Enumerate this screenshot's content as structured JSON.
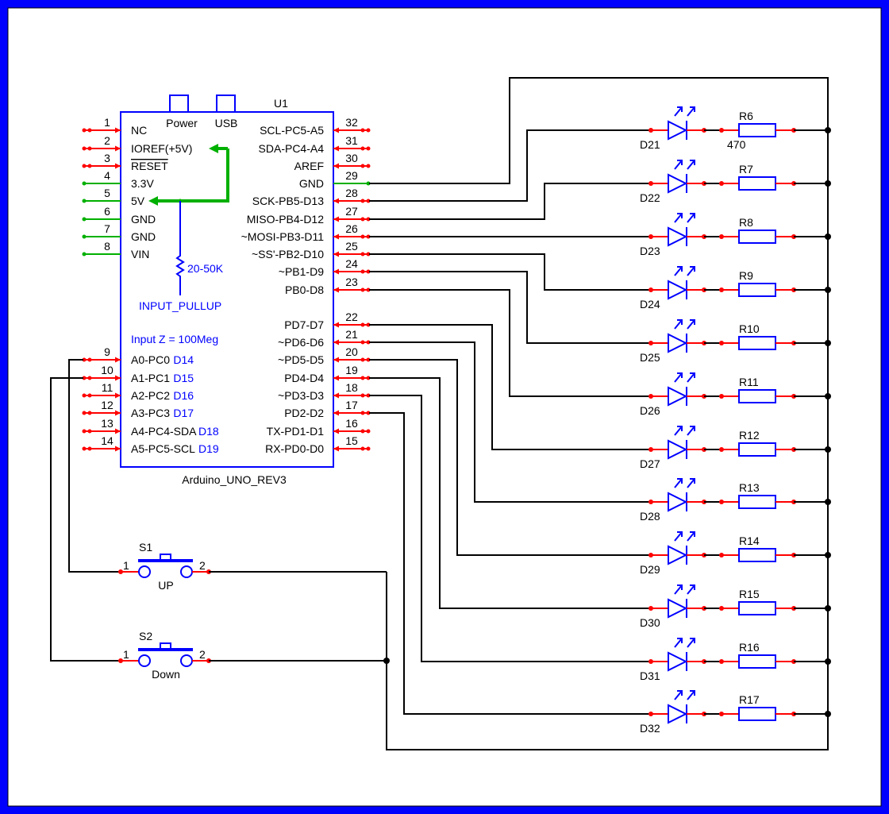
{
  "colors": {
    "frame": "#0000ff",
    "wire": "#000000",
    "pin": "#ff0000",
    "power_pin": "#00b000",
    "component": "#0000ff"
  },
  "arduino": {
    "ref": "U1",
    "name": "Arduino_UNO_REV3",
    "power_label": "Power",
    "usb_label": "USB",
    "pullup_value": "20-50K",
    "pullup_label": "INPUT_PULLUP",
    "input_z": "Input Z = 100Meg",
    "left_pins": [
      {
        "num": "1",
        "label": "NC",
        "type": "io"
      },
      {
        "num": "2",
        "label": "IOREF(+5V)",
        "type": "io"
      },
      {
        "num": "3",
        "label": "RESET",
        "type": "io",
        "overline": true
      },
      {
        "num": "4",
        "label": "3.3V",
        "type": "power"
      },
      {
        "num": "5",
        "label": "5V",
        "type": "power"
      },
      {
        "num": "6",
        "label": "GND",
        "type": "power"
      },
      {
        "num": "7",
        "label": "GND",
        "type": "power"
      },
      {
        "num": "8",
        "label": "VIN",
        "type": "power"
      },
      {
        "num": "9",
        "label": "A0-PC0",
        "alias": "D14",
        "type": "io"
      },
      {
        "num": "10",
        "label": "A1-PC1",
        "alias": "D15",
        "type": "io"
      },
      {
        "num": "11",
        "label": "A2-PC2",
        "alias": "D16",
        "type": "io"
      },
      {
        "num": "12",
        "label": "A3-PC3",
        "alias": "D17",
        "type": "io"
      },
      {
        "num": "13",
        "label": "A4-PC4-SDA",
        "alias": "D18",
        "type": "io"
      },
      {
        "num": "14",
        "label": "A5-PC5-SCL",
        "alias": "D19",
        "type": "io"
      }
    ],
    "right_pins": [
      {
        "num": "32",
        "label": "SCL-PC5-A5",
        "type": "io"
      },
      {
        "num": "31",
        "label": "SDA-PC4-A4",
        "type": "io"
      },
      {
        "num": "30",
        "label": "AREF",
        "type": "io"
      },
      {
        "num": "29",
        "label": "GND",
        "type": "power"
      },
      {
        "num": "28",
        "label": "SCK-PB5-D13",
        "type": "io"
      },
      {
        "num": "27",
        "label": "MISO-PB4-D12",
        "type": "io"
      },
      {
        "num": "26",
        "label": "~MOSI-PB3-D11",
        "type": "io"
      },
      {
        "num": "25",
        "label": "~SS'-PB2-D10",
        "type": "io"
      },
      {
        "num": "24",
        "label": "~PB1-D9",
        "type": "io"
      },
      {
        "num": "23",
        "label": "PB0-D8",
        "type": "io"
      },
      {
        "num": "22",
        "label": "PD7-D7",
        "type": "io"
      },
      {
        "num": "21",
        "label": "~PD6-D6",
        "type": "io"
      },
      {
        "num": "20",
        "label": "~PD5-D5",
        "type": "io"
      },
      {
        "num": "19",
        "label": "PD4-D4",
        "type": "io"
      },
      {
        "num": "18",
        "label": "~PD3-D3",
        "type": "io"
      },
      {
        "num": "17",
        "label": "PD2-D2",
        "type": "io"
      },
      {
        "num": "16",
        "label": "TX-PD1-D1",
        "type": "io"
      },
      {
        "num": "15",
        "label": "RX-PD0-D0",
        "type": "io"
      }
    ]
  },
  "leds": [
    {
      "led": "D21",
      "resistor": "R6",
      "value": "470",
      "pin": "28"
    },
    {
      "led": "D22",
      "resistor": "R7",
      "pin": "27"
    },
    {
      "led": "D23",
      "resistor": "R8",
      "pin": "26"
    },
    {
      "led": "D24",
      "resistor": "R9",
      "pin": "25"
    },
    {
      "led": "D25",
      "resistor": "R10",
      "pin": "24"
    },
    {
      "led": "D26",
      "resistor": "R11",
      "pin": "23"
    },
    {
      "led": "D27",
      "resistor": "R12",
      "pin": "22"
    },
    {
      "led": "D28",
      "resistor": "R13",
      "pin": "21"
    },
    {
      "led": "D29",
      "resistor": "R14",
      "pin": "20"
    },
    {
      "led": "D30",
      "resistor": "R15",
      "pin": "19"
    },
    {
      "led": "D31",
      "resistor": "R16",
      "pin": "18"
    },
    {
      "led": "D32",
      "resistor": "R17",
      "pin": "17"
    }
  ],
  "switches": [
    {
      "ref": "S1",
      "label": "UP",
      "pin1": "1",
      "pin2": "2",
      "arduino_pin": "9"
    },
    {
      "ref": "S2",
      "label": "Down",
      "pin1": "1",
      "pin2": "2",
      "arduino_pin": "10"
    }
  ]
}
